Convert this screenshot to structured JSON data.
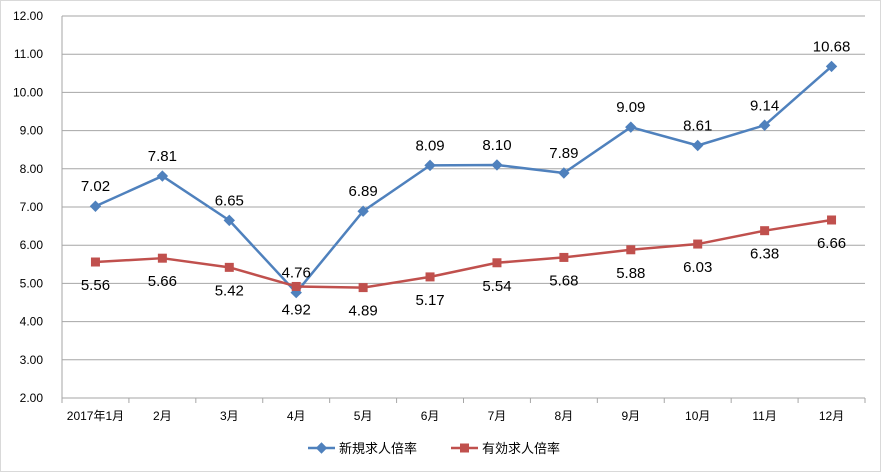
{
  "chart_data": {
    "type": "line",
    "categories": [
      "2017年1月",
      "2月",
      "3月",
      "4月",
      "5月",
      "6月",
      "7月",
      "8月",
      "9月",
      "10月",
      "11月",
      "12月"
    ],
    "series": [
      {
        "name": "新規求人倍率",
        "color": "#4F81BD",
        "marker": "diamond",
        "values": [
          7.02,
          7.81,
          6.65,
          4.76,
          6.89,
          8.09,
          8.1,
          7.89,
          9.09,
          8.61,
          9.14,
          10.68
        ],
        "labels": [
          "7.02",
          "7.81",
          "6.65",
          "4.76",
          "6.89",
          "8.09",
          "8.10",
          "7.89",
          "9.09",
          "8.61",
          "9.14",
          "10.68"
        ]
      },
      {
        "name": "有効求人倍率",
        "color": "#C0504D",
        "marker": "square",
        "values": [
          5.56,
          5.66,
          5.42,
          4.92,
          4.89,
          5.17,
          5.54,
          5.68,
          5.88,
          6.03,
          6.38,
          6.66
        ],
        "labels": [
          "5.56",
          "5.66",
          "5.42",
          "4.92",
          "4.89",
          "5.17",
          "5.54",
          "5.68",
          "5.88",
          "6.03",
          "6.38",
          "6.66"
        ]
      }
    ],
    "yticks": [
      "2.00",
      "3.00",
      "4.00",
      "5.00",
      "6.00",
      "7.00",
      "8.00",
      "9.00",
      "10.00",
      "11.00",
      "12.00"
    ],
    "ylim": [
      2,
      12
    ],
    "grid": true,
    "legend_position": "bottom",
    "title": "",
    "xlabel": "",
    "ylabel": ""
  }
}
